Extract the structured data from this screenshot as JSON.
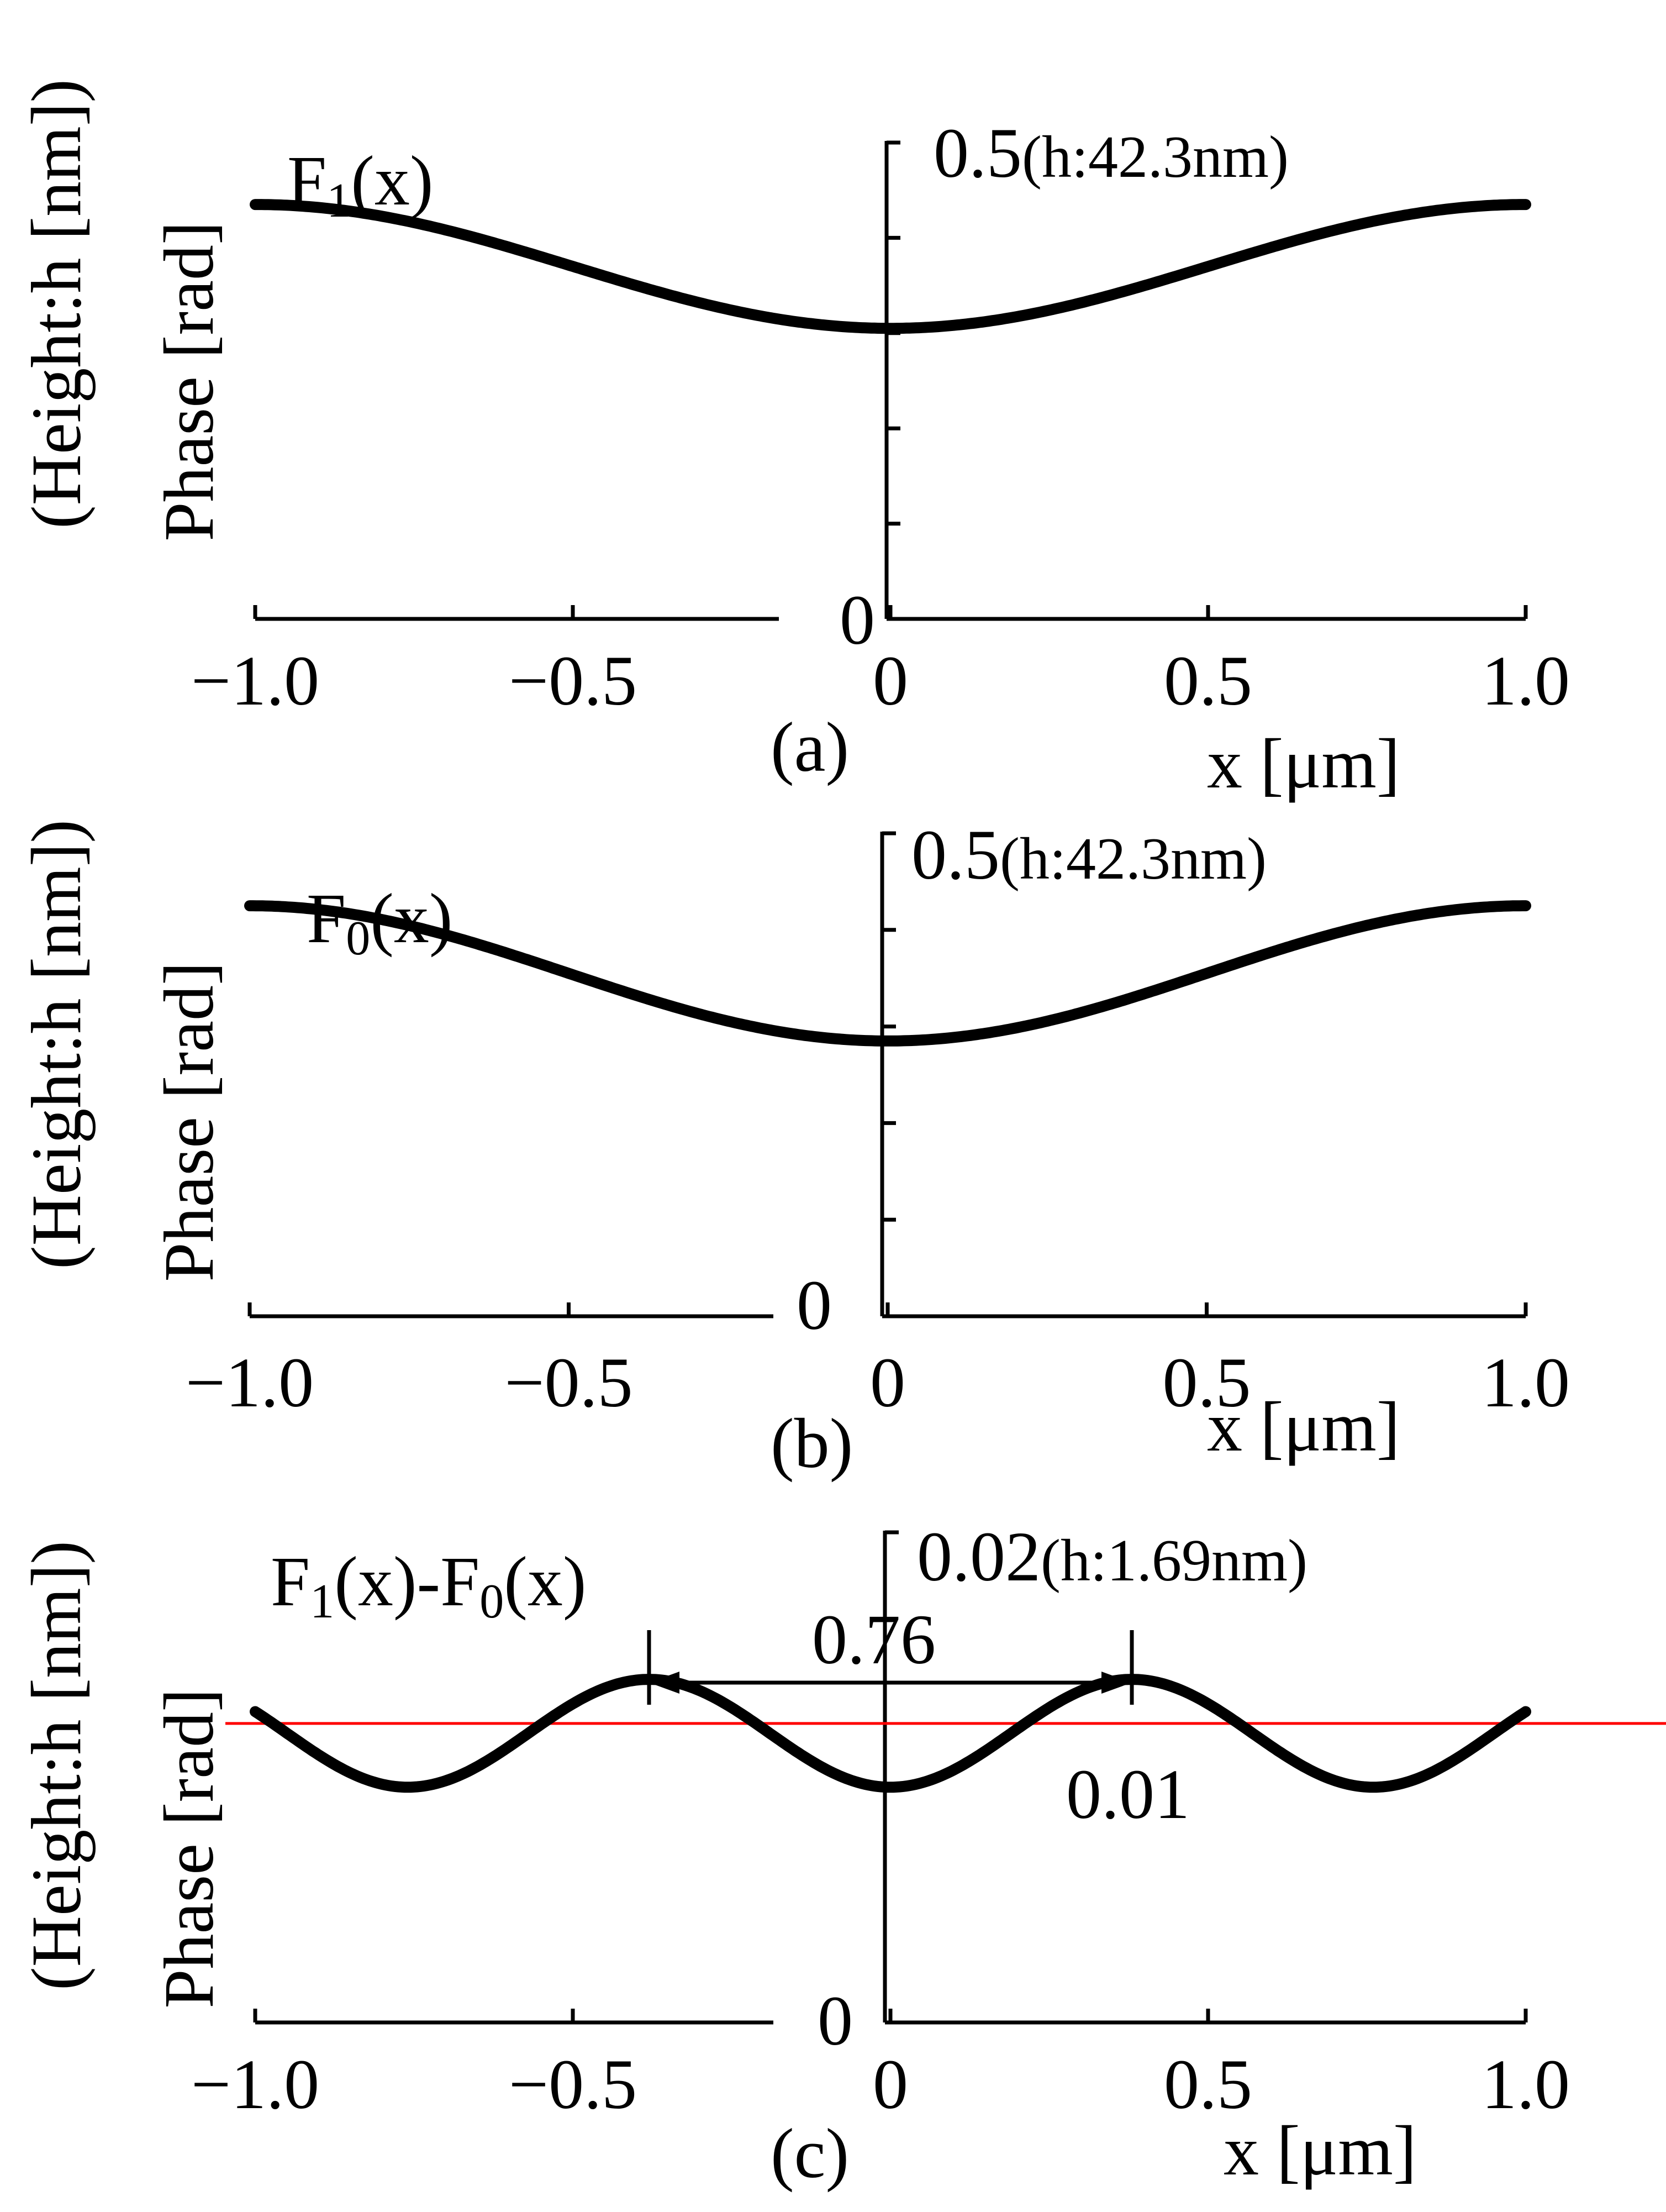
{
  "chart_data": [
    {
      "type": "line",
      "panel_label": "(a)",
      "curve_label": "F",
      "curve_label_sub": "1",
      "curve_label_tail": "(x)",
      "ylabel_line1": "(Height:h [nm])",
      "ylabel_line2": "Phase [rad]",
      "xlabel": "x [μm]",
      "y_top_label": "0.5",
      "y_top_suffix": "(h:42.3nm)",
      "y_zero_label": "0",
      "x_tick_labels": [
        "−1.0",
        "−0.5",
        "0",
        "0.5",
        "1.0"
      ],
      "x_ticks": [
        -1.0,
        -0.5,
        0,
        0.5,
        1.0
      ],
      "xlim": [
        -1.0,
        1.0
      ],
      "ylim": [
        0,
        0.5
      ],
      "y_minor_ticks": [
        0.1,
        0.2,
        0.3,
        0.4
      ],
      "series": [
        {
          "name": "F1(x)",
          "mean": 0.37,
          "amplitude": 0.065,
          "period": 2.0,
          "phase": 0,
          "form": "cos_max_at_edges"
        }
      ]
    },
    {
      "type": "line",
      "panel_label": "(b)",
      "curve_label": "F",
      "curve_label_sub": "0",
      "curve_label_tail": "(x)",
      "ylabel_line1": "(Height:h [nm])",
      "ylabel_line2": "Phase [rad]",
      "xlabel": "x [μm]",
      "y_top_label": "0.5",
      "y_top_suffix": "(h:42.3nm)",
      "y_zero_label": "0",
      "x_tick_labels": [
        "−1.0",
        "−0.5",
        "0",
        "0.5",
        "1.0"
      ],
      "x_ticks": [
        -1.0,
        -0.5,
        0,
        0.5,
        1.0
      ],
      "xlim": [
        -1.0,
        1.0
      ],
      "ylim": [
        0,
        0.5
      ],
      "y_minor_ticks": [
        0.1,
        0.2,
        0.3,
        0.4
      ],
      "series": [
        {
          "name": "F0(x)",
          "mean": 0.355,
          "amplitude": 0.07,
          "period": 2.0,
          "phase": 0,
          "form": "cos_max_at_edges"
        }
      ]
    },
    {
      "type": "line",
      "panel_label": "(c)",
      "curve_label": "F",
      "curve_label_sub": "1",
      "curve_label_tail": "(x)-F",
      "curve_label_sub2": "0",
      "curve_label_tail2": "(x)",
      "ylabel_line1": "(Height:h [nm])",
      "ylabel_line2": "Phase [rad]",
      "xlabel": "x [μm]",
      "y_top_label": "0.02",
      "y_top_suffix": "(h:1.69nm)",
      "y_zero_label": "0",
      "x_tick_labels": [
        "−1.0",
        "−0.5",
        "0",
        "0.5",
        "1.0"
      ],
      "x_ticks": [
        -1.0,
        -0.5,
        0,
        0.5,
        1.0
      ],
      "xlim": [
        -1.0,
        1.0
      ],
      "ylim": [
        0,
        0.02
      ],
      "y_minor_ticks": [],
      "series": [
        {
          "name": "F1(x)-F0(x)",
          "mean": 0.0118,
          "amplitude": 0.0022,
          "period": 0.76,
          "phase": 0,
          "form": "cos_min_at_zero"
        }
      ],
      "reference_line": {
        "y": 0.0122,
        "color": "#ff0000"
      },
      "reference_label": "0.01",
      "period_annotation": {
        "label": "0.76",
        "x_start": -0.38,
        "x_end": 0.38
      }
    }
  ]
}
